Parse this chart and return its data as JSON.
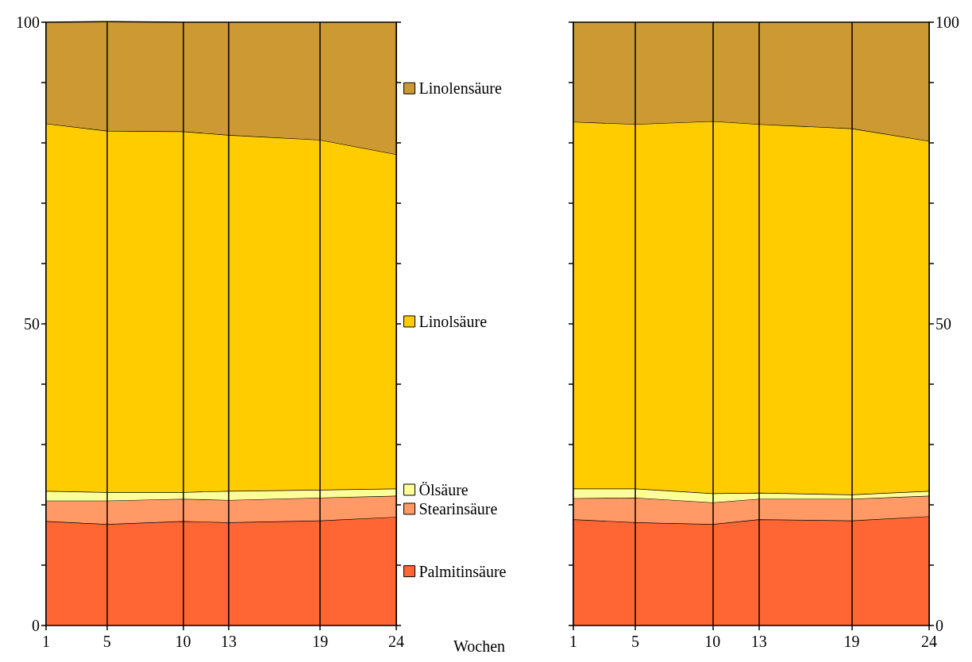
{
  "chart_data": [
    {
      "type": "area",
      "stacked": true,
      "xlabel": "Wochen",
      "x": [
        1,
        5,
        10,
        13,
        19,
        24
      ],
      "xlim": [
        1,
        24
      ],
      "xticks": [
        1,
        5,
        10,
        13,
        19,
        24
      ],
      "ylim": [
        0,
        100
      ],
      "yticks": [
        0,
        {
          "value": 10,
          "label": null
        },
        {
          "value": 20,
          "label": null
        },
        {
          "value": 30,
          "label": null
        },
        {
          "value": 40,
          "label": null
        },
        50,
        {
          "value": 60,
          "label": null
        },
        {
          "value": 70,
          "label": null
        },
        {
          "value": 80,
          "label": null
        },
        {
          "value": 90,
          "label": null
        },
        100
      ],
      "grid": "x",
      "marker": "none",
      "line_style": "solid",
      "legend": "right",
      "series": [
        {
          "name": "Palmitinsäure",
          "color": "#ff6633",
          "values": [
            17.3,
            16.8,
            17.3,
            17.1,
            17.4,
            18.0
          ]
        },
        {
          "name": "Stearinsäure",
          "color": "#ff9966",
          "values": [
            3.4,
            3.9,
            3.7,
            3.7,
            3.8,
            3.5
          ]
        },
        {
          "name": "Ölsäure",
          "color": "#ffff99",
          "values": [
            1.6,
            1.4,
            1.1,
            1.5,
            1.3,
            1.2
          ]
        },
        {
          "name": "Linolsäure",
          "color": "#ffcc00",
          "values": [
            60.9,
            59.9,
            59.8,
            59.0,
            58.0,
            55.4
          ]
        },
        {
          "name": "Linolensäure",
          "color": "#cc9933",
          "values": [
            16.8,
            18.1,
            18.1,
            18.7,
            19.5,
            21.9
          ]
        }
      ]
    },
    {
      "type": "area",
      "stacked": true,
      "x": [
        1,
        5,
        10,
        13,
        19,
        24
      ],
      "xlim": [
        1,
        24
      ],
      "xticks": [
        1,
        5,
        10,
        13,
        19,
        24
      ],
      "ylim": [
        0,
        100
      ],
      "yticks": [
        0,
        {
          "value": 10,
          "label": null
        },
        {
          "value": 20,
          "label": null
        },
        {
          "value": 30,
          "label": null
        },
        {
          "value": 40,
          "label": null
        },
        50,
        {
          "value": 60,
          "label": null
        },
        {
          "value": 70,
          "label": null
        },
        {
          "value": 80,
          "label": null
        },
        {
          "value": 90,
          "label": null
        },
        100
      ],
      "grid": "x",
      "marker": "none",
      "line_style": "solid",
      "series": [
        {
          "color": "#ff6633",
          "values": [
            17.6,
            17.1,
            16.8,
            17.6,
            17.4,
            18.1
          ]
        },
        {
          "color": "#ff9966",
          "values": [
            3.5,
            4.1,
            3.6,
            3.4,
            3.6,
            3.4
          ]
        },
        {
          "color": "#ffff99",
          "values": [
            1.6,
            1.5,
            1.5,
            1.0,
            0.7,
            0.8
          ]
        },
        {
          "color": "#ffcc00",
          "values": [
            60.8,
            60.4,
            61.7,
            61.1,
            60.7,
            58.0
          ]
        },
        {
          "color": "#cc9933",
          "values": [
            16.5,
            16.9,
            16.4,
            16.9,
            17.6,
            19.7
          ]
        }
      ]
    }
  ]
}
